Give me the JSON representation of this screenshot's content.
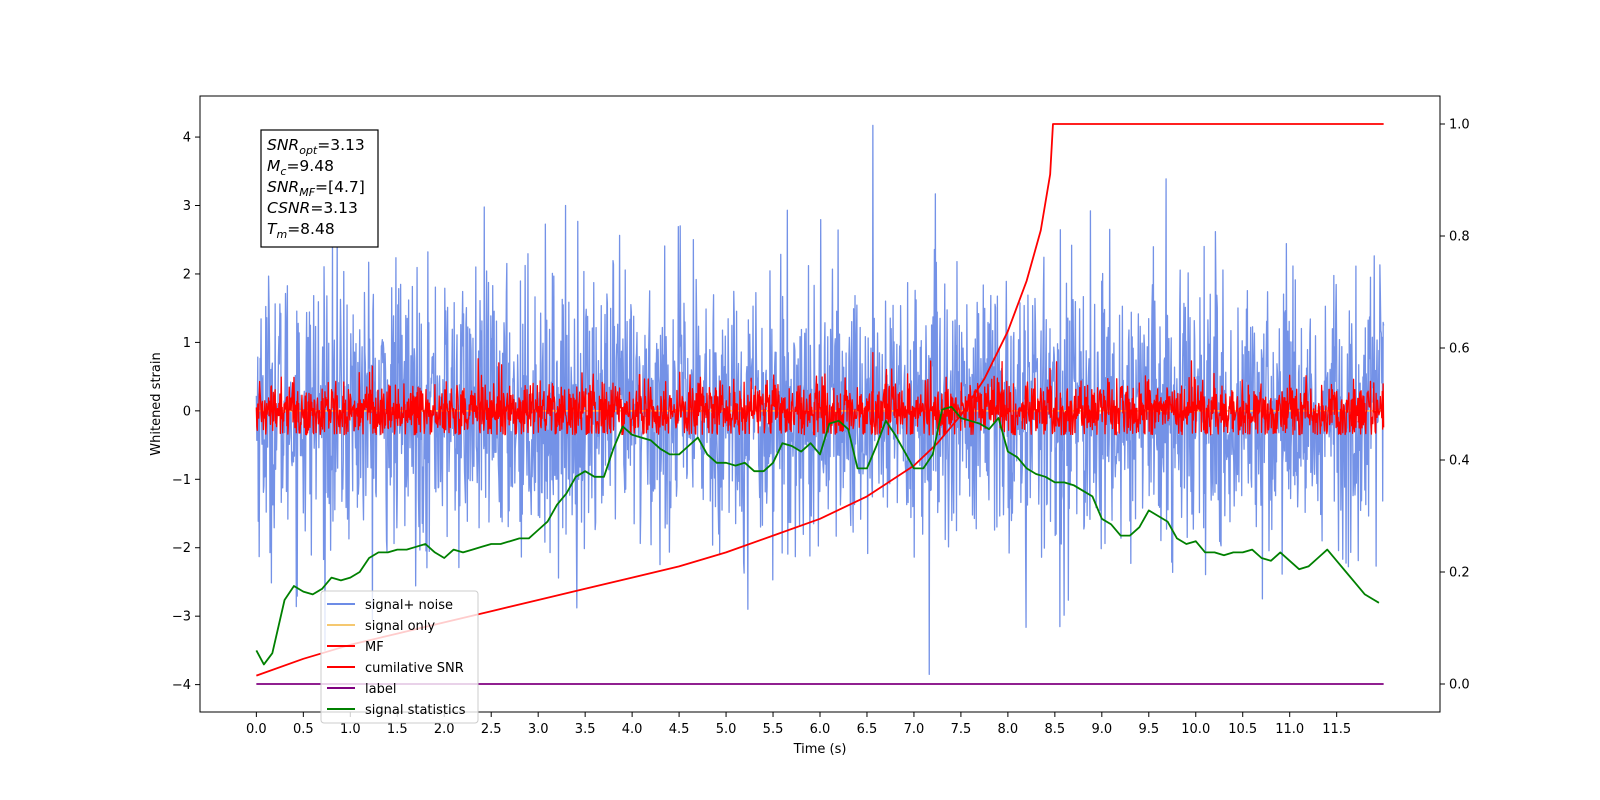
{
  "chart_data": {
    "type": "line",
    "xlabel": "Time (s)",
    "ylabel": "Whitened strain",
    "xlim": [
      -0.6,
      12.6
    ],
    "ylim": [
      -4.4,
      4.6
    ],
    "y2lim": [
      -0.05,
      1.05
    ],
    "x_ticks": [
      "0.0",
      "0.5",
      "1.0",
      "1.5",
      "2.0",
      "2.5",
      "3.0",
      "3.5",
      "4.0",
      "4.5",
      "5.0",
      "5.5",
      "6.0",
      "6.5",
      "7.0",
      "7.5",
      "8.0",
      "8.5",
      "9.0",
      "9.5",
      "10.0",
      "10.5",
      "11.0",
      "11.5"
    ],
    "y_ticks": [
      "4",
      "3",
      "2",
      "1",
      "0",
      "−1",
      "−2",
      "−3",
      "−4"
    ],
    "y2_ticks": [
      "1.0",
      "0.8",
      "0.6",
      "0.4",
      "0.2",
      "0.0"
    ],
    "annotation": {
      "lines": [
        {
          "sym": "SNR",
          "sub": "opt",
          "value": "=3.13"
        },
        {
          "sym": "M",
          "sub": "c",
          "value": "=9.48"
        },
        {
          "sym": "SNR",
          "sub": "MF",
          "value": "=[4.7]"
        },
        {
          "sym": "CSNR",
          "sub": "",
          "value": "=3.13"
        },
        {
          "sym": "T",
          "sub": "m",
          "value": "=8.48"
        }
      ]
    },
    "legend": {
      "placement": "lower-left",
      "entries": [
        {
          "label": "signal+ noise",
          "color": "#6d8ce6"
        },
        {
          "label": "signal only",
          "color": "#f5c870"
        },
        {
          "label": "MF",
          "color": "#ff0000"
        },
        {
          "label": "cumilative SNR",
          "color": "#ff0000"
        },
        {
          "label": "label",
          "color": "#800080"
        },
        {
          "label": "signal statistics",
          "color": "#008000"
        }
      ]
    },
    "series": [
      {
        "name": "signal+ noise",
        "axis": "left",
        "color": "#6d8ce6",
        "x_range": [
          0.0,
          12.0
        ],
        "samples": 2400,
        "std": 1.0,
        "peak_max": 4.17,
        "peak_min": -3.85
      },
      {
        "name": "signal only",
        "axis": "left",
        "color": "#f5c870",
        "x_range": [
          0.0,
          12.0
        ],
        "value": 0.0
      },
      {
        "name": "MF",
        "axis": "left",
        "color": "#ff0000",
        "x_range": [
          0.0,
          12.0
        ],
        "samples": 2400,
        "std": 0.22,
        "peak_max": 0.85,
        "peak_min": -0.35
      },
      {
        "name": "cumilative SNR",
        "axis": "right",
        "color": "#ff0000",
        "x": [
          0.0,
          0.5,
          1.0,
          1.5,
          2.0,
          2.5,
          3.0,
          3.5,
          4.0,
          4.5,
          5.0,
          5.5,
          6.0,
          6.5,
          7.0,
          7.25,
          7.5,
          7.75,
          8.0,
          8.2,
          8.35,
          8.45,
          8.48,
          12.0
        ],
        "y": [
          0.015,
          0.045,
          0.07,
          0.09,
          0.11,
          0.13,
          0.15,
          0.17,
          0.19,
          0.21,
          0.235,
          0.265,
          0.295,
          0.335,
          0.39,
          0.43,
          0.48,
          0.545,
          0.63,
          0.72,
          0.81,
          0.91,
          1.0,
          1.0
        ]
      },
      {
        "name": "label",
        "axis": "right",
        "color": "#800080",
        "x": [
          0.0,
          12.0
        ],
        "y": [
          0.0,
          0.0
        ]
      },
      {
        "name": "signal statistics",
        "axis": "right",
        "color": "#008000",
        "x": [
          0.0,
          0.08,
          0.17,
          0.3,
          0.4,
          0.5,
          0.6,
          0.7,
          0.8,
          0.9,
          1.0,
          1.1,
          1.2,
          1.3,
          1.4,
          1.5,
          1.6,
          1.7,
          1.8,
          1.9,
          2.0,
          2.1,
          2.2,
          2.3,
          2.4,
          2.5,
          2.6,
          2.7,
          2.8,
          2.9,
          3.0,
          3.1,
          3.2,
          3.3,
          3.4,
          3.5,
          3.6,
          3.7,
          3.8,
          3.9,
          4.0,
          4.1,
          4.2,
          4.3,
          4.4,
          4.5,
          4.6,
          4.7,
          4.8,
          4.9,
          5.0,
          5.1,
          5.2,
          5.3,
          5.4,
          5.5,
          5.6,
          5.7,
          5.8,
          5.9,
          6.0,
          6.1,
          6.2,
          6.3,
          6.4,
          6.5,
          6.6,
          6.7,
          6.8,
          6.9,
          7.0,
          7.1,
          7.2,
          7.3,
          7.4,
          7.5,
          7.6,
          7.7,
          7.8,
          7.9,
          8.0,
          8.1,
          8.2,
          8.3,
          8.4,
          8.5,
          8.6,
          8.7,
          8.8,
          8.9,
          9.0,
          9.1,
          9.2,
          9.3,
          9.4,
          9.5,
          9.6,
          9.7,
          9.8,
          9.9,
          10.0,
          10.1,
          10.2,
          10.3,
          10.4,
          10.5,
          10.6,
          10.7,
          10.8,
          10.9,
          11.0,
          11.1,
          11.2,
          11.3,
          11.4,
          11.5,
          11.6,
          11.7,
          11.8,
          11.9,
          11.95
        ],
        "y": [
          0.06,
          0.035,
          0.055,
          0.15,
          0.175,
          0.165,
          0.16,
          0.17,
          0.19,
          0.185,
          0.19,
          0.2,
          0.225,
          0.235,
          0.235,
          0.24,
          0.24,
          0.245,
          0.25,
          0.235,
          0.225,
          0.24,
          0.235,
          0.24,
          0.245,
          0.25,
          0.25,
          0.255,
          0.26,
          0.26,
          0.275,
          0.29,
          0.32,
          0.34,
          0.37,
          0.38,
          0.37,
          0.37,
          0.42,
          0.46,
          0.445,
          0.44,
          0.435,
          0.42,
          0.41,
          0.41,
          0.425,
          0.44,
          0.41,
          0.395,
          0.395,
          0.39,
          0.395,
          0.38,
          0.38,
          0.395,
          0.43,
          0.425,
          0.415,
          0.43,
          0.41,
          0.465,
          0.47,
          0.455,
          0.385,
          0.385,
          0.425,
          0.47,
          0.445,
          0.415,
          0.385,
          0.385,
          0.41,
          0.49,
          0.495,
          0.475,
          0.47,
          0.465,
          0.455,
          0.475,
          0.415,
          0.405,
          0.385,
          0.375,
          0.37,
          0.36,
          0.36,
          0.355,
          0.345,
          0.335,
          0.295,
          0.285,
          0.265,
          0.265,
          0.28,
          0.31,
          0.3,
          0.29,
          0.26,
          0.25,
          0.255,
          0.235,
          0.235,
          0.23,
          0.235,
          0.235,
          0.24,
          0.225,
          0.22,
          0.235,
          0.22,
          0.205,
          0.21,
          0.225,
          0.24,
          0.22,
          0.2,
          0.18,
          0.16,
          0.15,
          0.145
        ]
      }
    ]
  }
}
